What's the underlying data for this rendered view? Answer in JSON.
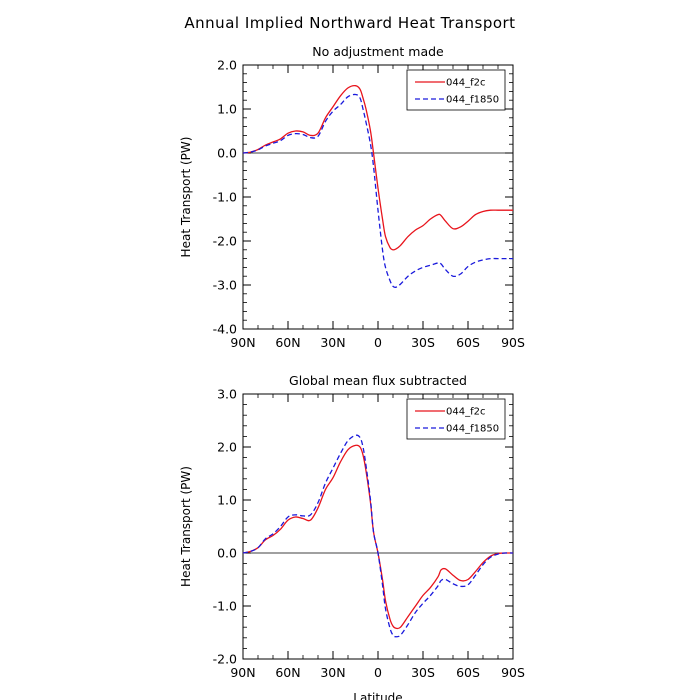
{
  "title": "Annual Implied Northward Heat Transport",
  "chart_data": [
    {
      "type": "line",
      "title": "No adjustment made",
      "xlabel": "",
      "ylabel": "Heat Transport (PW)",
      "xlim": [
        90,
        -90
      ],
      "ylim": [
        -4.0,
        2.0
      ],
      "xticks": [
        90,
        60,
        30,
        0,
        -30,
        -60,
        -90
      ],
      "xtick_labels": [
        "90N",
        "60N",
        "30N",
        "0",
        "30S",
        "60S",
        "90S"
      ],
      "yticks": [
        -4.0,
        -3.0,
        -2.0,
        -1.0,
        0.0,
        1.0,
        2.0
      ],
      "ytick_labels": [
        "-4.0",
        "-3.0",
        "-2.0",
        "-1.0",
        "0.0",
        "1.0",
        "2.0"
      ],
      "zero_line": true,
      "legend_position": "top-right",
      "series": [
        {
          "name": "044_f2c",
          "color": "#e8141c",
          "dash": "solid",
          "x": [
            90,
            85,
            80,
            75,
            70,
            65,
            60,
            55,
            50,
            45,
            40,
            35,
            30,
            25,
            20,
            15,
            12,
            10,
            8,
            5,
            3,
            0,
            -3,
            -5,
            -8,
            -10,
            -12,
            -15,
            -20,
            -25,
            -30,
            -35,
            -40,
            -42,
            -45,
            -50,
            -55,
            -60,
            -65,
            -70,
            -75,
            -80,
            -85,
            -90
          ],
          "values": [
            0.0,
            0.02,
            0.08,
            0.18,
            0.25,
            0.32,
            0.45,
            0.5,
            0.48,
            0.4,
            0.45,
            0.8,
            1.05,
            1.3,
            1.48,
            1.53,
            1.45,
            1.25,
            1.0,
            0.5,
            0.0,
            -0.8,
            -1.5,
            -1.9,
            -2.15,
            -2.2,
            -2.18,
            -2.1,
            -1.9,
            -1.75,
            -1.65,
            -1.5,
            -1.4,
            -1.42,
            -1.55,
            -1.72,
            -1.68,
            -1.55,
            -1.4,
            -1.33,
            -1.3,
            -1.3,
            -1.3,
            -1.3
          ]
        },
        {
          "name": "044_f1850",
          "color": "#1a1adc",
          "dash": "dashed",
          "x": [
            90,
            85,
            80,
            75,
            70,
            65,
            60,
            55,
            50,
            45,
            40,
            35,
            30,
            25,
            20,
            15,
            12,
            10,
            8,
            5,
            3,
            0,
            -3,
            -5,
            -8,
            -10,
            -12,
            -15,
            -20,
            -25,
            -30,
            -35,
            -40,
            -42,
            -45,
            -50,
            -55,
            -60,
            -65,
            -70,
            -75,
            -80,
            -85,
            -90
          ],
          "values": [
            0.0,
            0.02,
            0.07,
            0.16,
            0.22,
            0.28,
            0.4,
            0.44,
            0.42,
            0.35,
            0.38,
            0.72,
            0.95,
            1.1,
            1.28,
            1.33,
            1.25,
            1.0,
            0.7,
            0.2,
            -0.3,
            -1.3,
            -2.2,
            -2.6,
            -2.9,
            -3.03,
            -3.05,
            -2.98,
            -2.8,
            -2.68,
            -2.6,
            -2.55,
            -2.5,
            -2.52,
            -2.65,
            -2.8,
            -2.75,
            -2.58,
            -2.48,
            -2.43,
            -2.4,
            -2.4,
            -2.4,
            -2.4
          ]
        }
      ]
    },
    {
      "type": "line",
      "title": "Global mean flux subtracted",
      "xlabel": "Latitude",
      "ylabel": "Heat Transport (PW)",
      "xlim": [
        90,
        -90
      ],
      "ylim": [
        -2.0,
        3.0
      ],
      "xticks": [
        90,
        60,
        30,
        0,
        -30,
        -60,
        -90
      ],
      "xtick_labels": [
        "90N",
        "60N",
        "30N",
        "0",
        "30S",
        "60S",
        "90S"
      ],
      "yticks": [
        -2.0,
        -1.0,
        0.0,
        1.0,
        2.0,
        3.0
      ],
      "ytick_labels": [
        "-2.0",
        "-1.0",
        "0.0",
        "1.0",
        "2.0",
        "3.0"
      ],
      "zero_line": true,
      "legend_position": "top-right",
      "series": [
        {
          "name": "044_f2c",
          "color": "#e8141c",
          "dash": "solid",
          "x": [
            90,
            85,
            80,
            75,
            70,
            65,
            60,
            55,
            50,
            45,
            40,
            35,
            30,
            25,
            20,
            15,
            12,
            10,
            8,
            5,
            3,
            0,
            -3,
            -5,
            -8,
            -10,
            -12,
            -15,
            -20,
            -25,
            -30,
            -35,
            -40,
            -42,
            -45,
            -50,
            -55,
            -60,
            -65,
            -70,
            -75,
            -80,
            -85,
            -90
          ],
          "values": [
            0.0,
            0.03,
            0.1,
            0.25,
            0.33,
            0.45,
            0.62,
            0.68,
            0.65,
            0.62,
            0.85,
            1.2,
            1.42,
            1.72,
            1.95,
            2.03,
            2.0,
            1.85,
            1.55,
            0.95,
            0.4,
            0.0,
            -0.5,
            -0.9,
            -1.25,
            -1.38,
            -1.42,
            -1.4,
            -1.2,
            -1.0,
            -0.8,
            -0.65,
            -0.45,
            -0.32,
            -0.3,
            -0.42,
            -0.52,
            -0.5,
            -0.35,
            -0.18,
            -0.06,
            -0.01,
            0.0,
            0.0
          ]
        },
        {
          "name": "044_f1850",
          "color": "#1a1adc",
          "dash": "dashed",
          "x": [
            90,
            85,
            80,
            75,
            70,
            65,
            60,
            55,
            50,
            45,
            40,
            35,
            30,
            25,
            20,
            15,
            12,
            10,
            8,
            5,
            3,
            0,
            -3,
            -5,
            -8,
            -10,
            -12,
            -15,
            -20,
            -25,
            -30,
            -35,
            -40,
            -42,
            -45,
            -50,
            -55,
            -60,
            -65,
            -70,
            -75,
            -80,
            -85,
            -90
          ],
          "values": [
            0.0,
            0.03,
            0.1,
            0.27,
            0.36,
            0.5,
            0.68,
            0.72,
            0.7,
            0.72,
            0.95,
            1.32,
            1.6,
            1.88,
            2.12,
            2.22,
            2.18,
            2.0,
            1.65,
            1.0,
            0.4,
            0.0,
            -0.6,
            -1.05,
            -1.42,
            -1.55,
            -1.58,
            -1.55,
            -1.35,
            -1.12,
            -0.95,
            -0.8,
            -0.62,
            -0.52,
            -0.5,
            -0.58,
            -0.63,
            -0.6,
            -0.42,
            -0.22,
            -0.08,
            -0.02,
            0.0,
            0.0
          ]
        }
      ]
    }
  ]
}
